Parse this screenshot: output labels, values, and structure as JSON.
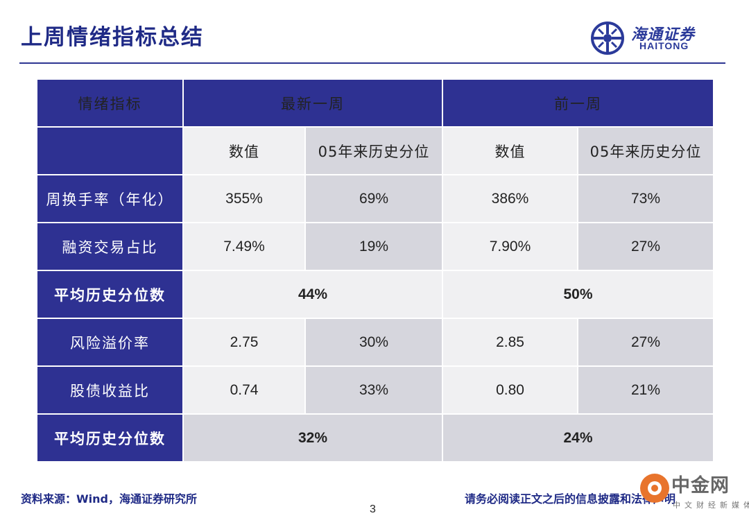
{
  "header": {
    "title": "上周情绪指标总结"
  },
  "logo": {
    "cn": "海通证券",
    "en": "HAITONG"
  },
  "table": {
    "col_headers": {
      "indicator": "情绪指标",
      "latest": "最新一周",
      "previous": "前一周"
    },
    "sub_headers": [
      "数值",
      "05年来历史分位",
      "数值",
      "05年来历史分位"
    ],
    "rows": [
      {
        "type": "data",
        "label": "周换手率（年化）",
        "cells": [
          "355%",
          "69%",
          "386%",
          "73%"
        ]
      },
      {
        "type": "data",
        "label": "融资交易占比",
        "cells": [
          "7.49%",
          "19%",
          "7.90%",
          "27%"
        ]
      },
      {
        "type": "avg",
        "label": "平均历史分位数",
        "latest": "44%",
        "previous": "50%"
      },
      {
        "type": "data",
        "label": "风险溢价率",
        "cells": [
          "2.75",
          "30%",
          "2.85",
          "27%"
        ]
      },
      {
        "type": "data",
        "label": "股债收益比",
        "cells": [
          "0.74",
          "33%",
          "0.80",
          "21%"
        ]
      },
      {
        "type": "avg",
        "label": "平均历史分位数",
        "latest": "32%",
        "previous": "24%"
      }
    ]
  },
  "footer": {
    "source": "资料来源：Wind，海通证券研究所",
    "disclaimer": "请务必阅读正文之后的信息披露和法律声明",
    "page": "3"
  },
  "watermark": {
    "text": "中金网",
    "sub": "中文财经新媒体"
  },
  "colors": {
    "brand": "#2e3192",
    "cell_light": "#f0f0f2",
    "cell_dark": "#d6d6dd"
  }
}
